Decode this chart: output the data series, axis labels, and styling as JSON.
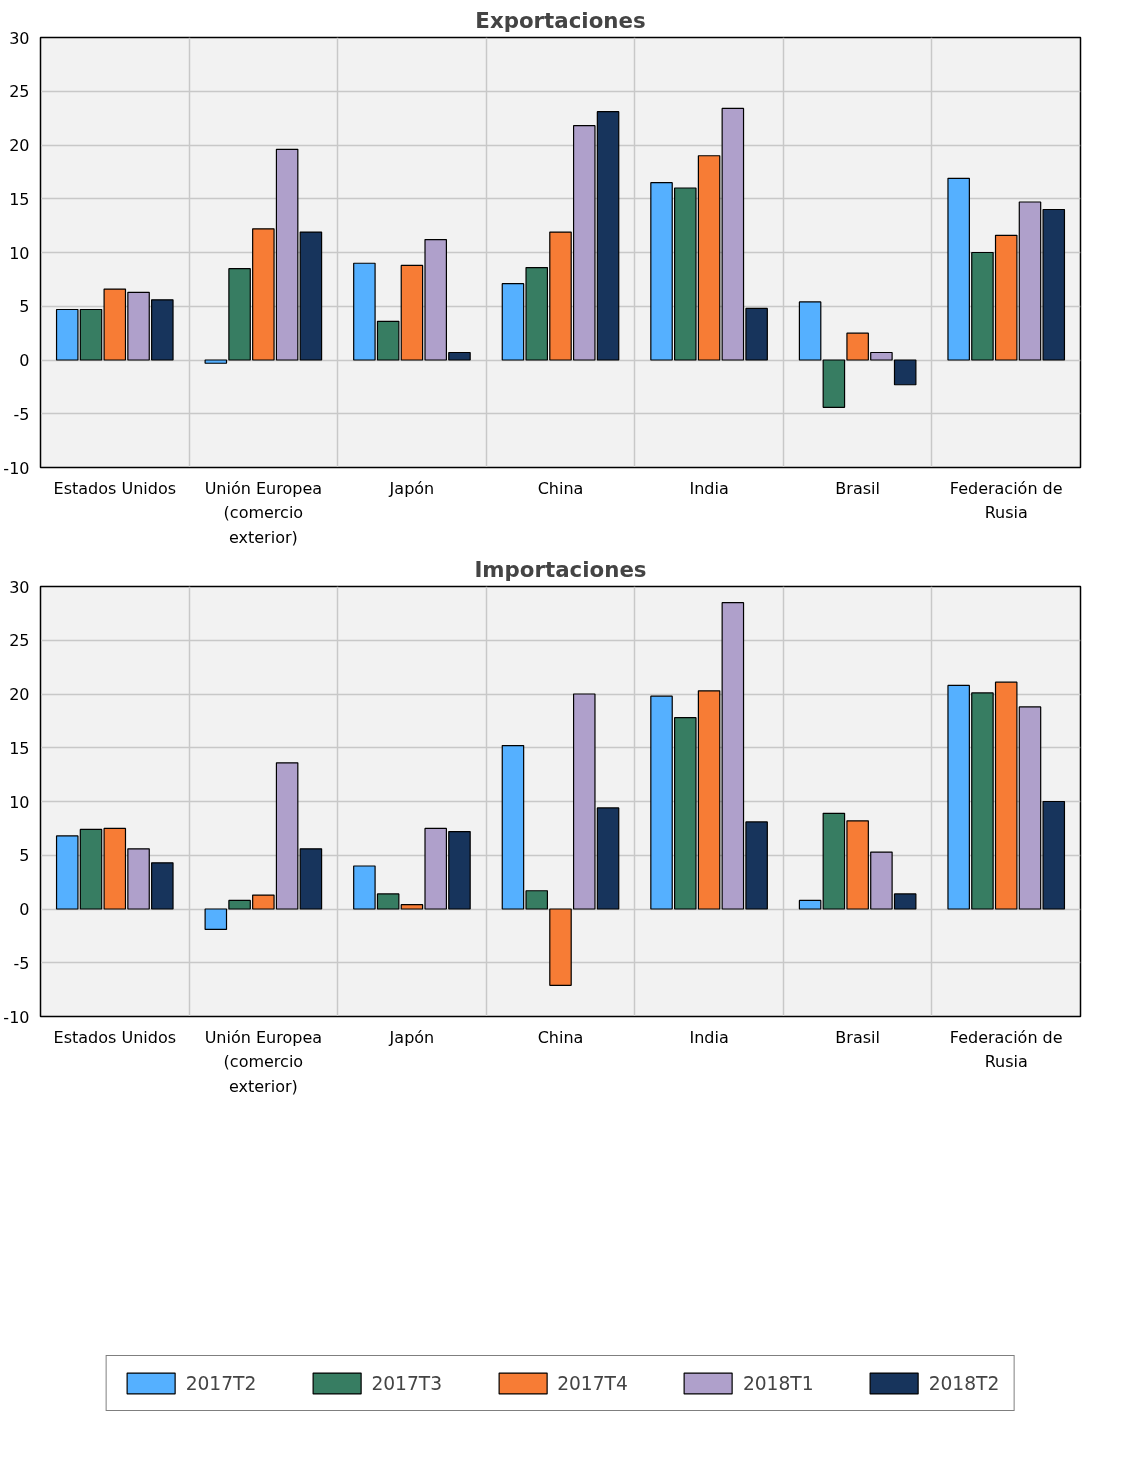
{
  "chart_data": [
    {
      "type": "bar",
      "title": "Exportaciones",
      "categories": [
        "Estados Unidos",
        "Unión Europea (comercio exterior)",
        "Japón",
        "China",
        "India",
        "Brasil",
        "Federación de Rusia"
      ],
      "series": [
        {
          "color": "#55b0ff",
          "values": [
            4.7,
            -0.3,
            9.0,
            7.1,
            16.5,
            5.4,
            16.9
          ]
        },
        {
          "color": "#377d62",
          "values": [
            4.7,
            8.5,
            3.6,
            8.6,
            16.0,
            -4.4,
            10.0
          ]
        },
        {
          "color": "#f77c35",
          "values": [
            6.6,
            12.2,
            8.8,
            11.9,
            19.0,
            2.5,
            11.6
          ]
        },
        {
          "color": "#afa0cb",
          "values": [
            6.3,
            19.6,
            11.2,
            21.8,
            23.4,
            0.7,
            14.7
          ]
        },
        {
          "color": "#17345c",
          "values": [
            5.6,
            11.9,
            0.7,
            23.1,
            4.8,
            -2.3,
            14.0
          ]
        }
      ],
      "ylim": [
        -10,
        30
      ],
      "yticks": [
        -10,
        -5,
        0,
        5,
        10,
        15,
        20,
        25,
        30
      ],
      "grid": true
    },
    {
      "type": "bar",
      "title": "Importaciones",
      "categories": [
        "Estados Unidos",
        "Unión Europea (comercio exterior)",
        "Japón",
        "China",
        "India",
        "Brasil",
        "Federación de Rusia"
      ],
      "series": [
        {
          "name": "2017T2",
          "color": "#55b0ff",
          "values": [
            6.8,
            -1.9,
            4.0,
            15.2,
            19.8,
            0.8,
            20.8
          ]
        },
        {
          "name": "2017T3",
          "color": "#377d62",
          "values": [
            7.4,
            0.8,
            1.4,
            1.7,
            17.8,
            8.9,
            20.1
          ]
        },
        {
          "name": "2017T4",
          "color": "#f77c35",
          "values": [
            7.5,
            1.3,
            0.4,
            -7.1,
            20.3,
            8.2,
            21.1
          ]
        },
        {
          "name": "2018T1",
          "color": "#afa0cb",
          "values": [
            5.6,
            13.6,
            7.5,
            20.0,
            28.5,
            5.3,
            18.8
          ]
        },
        {
          "name": "2018T2",
          "color": "#17345c",
          "values": [
            4.3,
            5.6,
            7.2,
            9.4,
            8.1,
            1.4,
            10.0
          ]
        }
      ],
      "ylim": [
        -10,
        30
      ],
      "yticks": [
        -10,
        -5,
        0,
        5,
        10,
        15,
        20,
        25,
        30
      ],
      "grid": true,
      "legend": "bottom"
    }
  ]
}
